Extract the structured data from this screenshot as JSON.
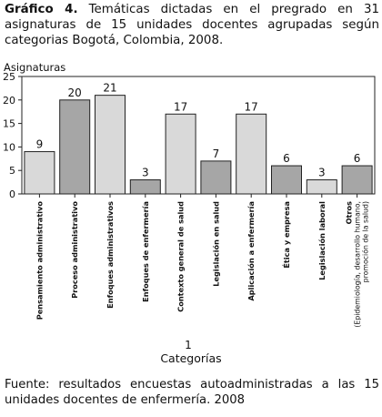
{
  "figure": {
    "label": "Gráfico 4.",
    "caption": "Temáticas dictadas en el pregrado en 31 asignaturas de 15 unidades docentes agrupadas según categorias Bogotá, Colombia, 2008.",
    "source": "Fuente: resultados encuestas autoadministradas a las 15 unidades docentes de enfermería. 2008"
  },
  "chart_data": {
    "type": "bar",
    "title": "",
    "ylabel": "Asignaturas",
    "xlabel": "Categorías",
    "x_axis_number": "1",
    "ylim": [
      0,
      25
    ],
    "yticks": [
      0,
      5,
      10,
      15,
      20,
      25
    ],
    "grid": false,
    "categories": [
      [
        "Pensamiento administrativo"
      ],
      [
        "Proceso administrativo"
      ],
      [
        "Enfoques administrativos"
      ],
      [
        "Enfoques de enfermería"
      ],
      [
        "Contexto general de salud"
      ],
      [
        "Legislación en salud"
      ],
      [
        "Aplicación a enfermería"
      ],
      [
        "Ética y empresa"
      ],
      [
        "Legislación laboral"
      ],
      [
        "Otros",
        "(Epidemiología, desarrollo humano,",
        "promoción de la salud)"
      ]
    ],
    "values": [
      9,
      20,
      21,
      3,
      17,
      7,
      17,
      6,
      3,
      6
    ],
    "bar_colors": [
      "#d9d9d9",
      "#a6a6a6",
      "#d9d9d9",
      "#a6a6a6",
      "#d9d9d9",
      "#a6a6a6",
      "#d9d9d9",
      "#a6a6a6",
      "#d9d9d9",
      "#a6a6a6"
    ]
  }
}
